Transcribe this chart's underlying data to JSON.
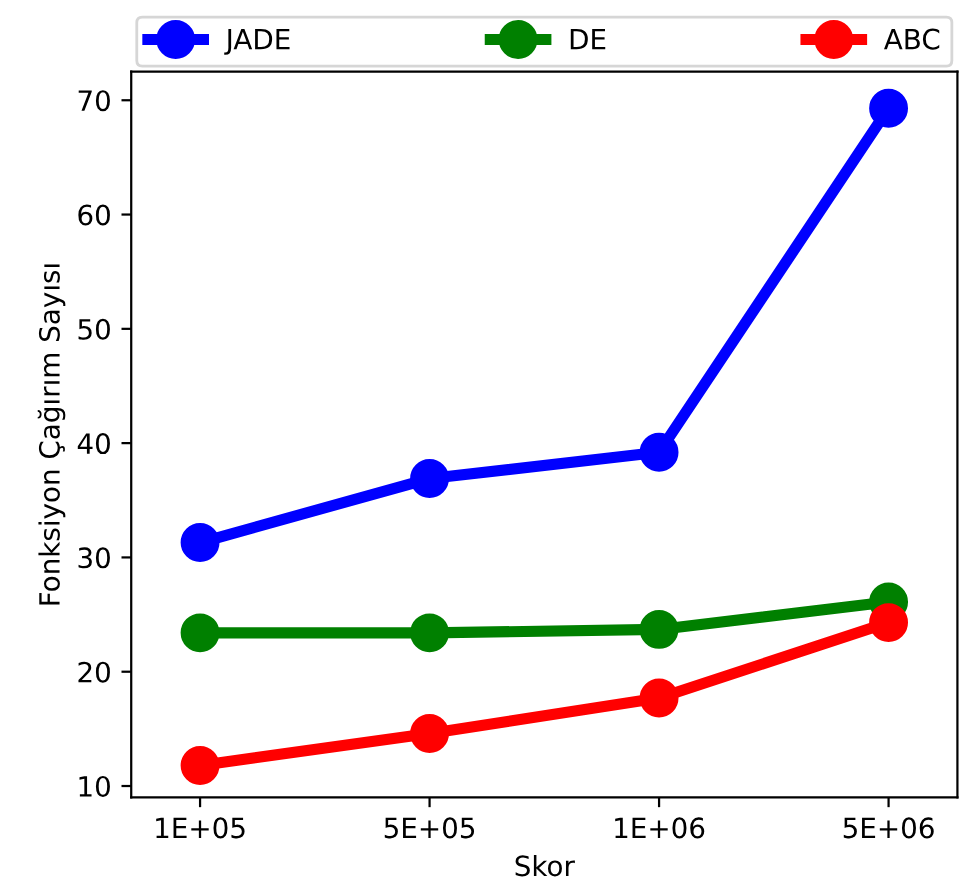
{
  "chart_data": {
    "type": "line",
    "xlabel": "Skor",
    "ylabel": "Fonksiyon Çağırım Sayısı",
    "categories": [
      "1E+05",
      "5E+05",
      "1E+06",
      "5E+06"
    ],
    "series": [
      {
        "name": "JADE",
        "color": "#0000ff",
        "values": [
          31.3,
          36.9,
          39.2,
          69.3
        ]
      },
      {
        "name": "DE",
        "color": "#008000",
        "values": [
          23.4,
          23.4,
          23.7,
          26.1
        ]
      },
      {
        "name": "ABC",
        "color": "#ff0000",
        "values": [
          11.8,
          14.6,
          17.7,
          24.3
        ]
      }
    ],
    "ylim": [
      9,
      72.5
    ],
    "yticks": [
      10,
      20,
      30,
      40,
      50,
      60,
      70
    ],
    "legend": "top",
    "marker": "circle",
    "line_style": "solid",
    "grid": false
  }
}
